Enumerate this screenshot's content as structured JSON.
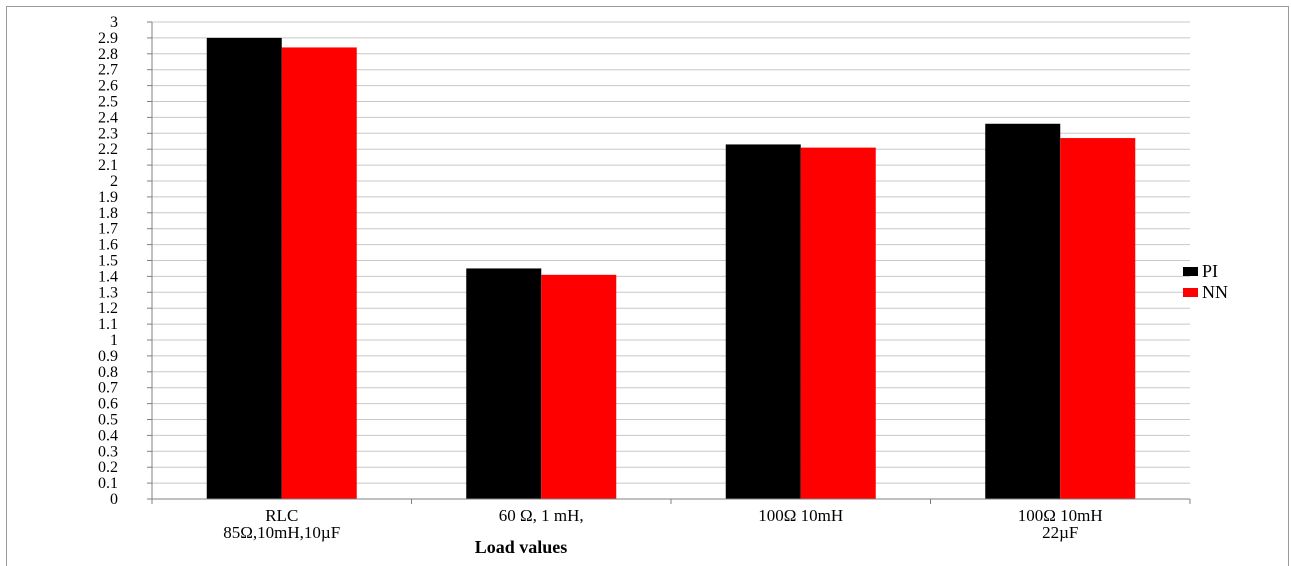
{
  "chart_data": {
    "type": "bar",
    "title": "",
    "xlabel": "Load values",
    "ylabel": "",
    "ylim": [
      0,
      3
    ],
    "y_tick_step": 0.1,
    "y_ticks": [
      "0",
      "0.1",
      "0.2",
      "0.3",
      "0.4",
      "0.5",
      "0.6",
      "0.7",
      "0.8",
      "0.9",
      "1",
      "1.1",
      "1.2",
      "1.3",
      "1.4",
      "1.5",
      "1.6",
      "1.7",
      "1.8",
      "1.9",
      "2",
      "2.1",
      "2.2",
      "2.3",
      "2.4",
      "2.5",
      "2.6",
      "2.7",
      "2.8",
      "2.9",
      "3"
    ],
    "grid": true,
    "legend_position": "right",
    "categories": [
      [
        "RLC",
        "85Ω,10mH,10µF"
      ],
      [
        "60  Ω, 1  mH,"
      ],
      [
        "100Ω  10mH"
      ],
      [
        "100Ω  10mH",
        "22µF"
      ]
    ],
    "series": [
      {
        "name": "PI",
        "color": "#000000",
        "values": [
          2.9,
          1.45,
          2.23,
          2.36
        ]
      },
      {
        "name": "NN",
        "color": "#ff0000",
        "values": [
          2.84,
          1.41,
          2.21,
          2.27
        ]
      }
    ]
  }
}
